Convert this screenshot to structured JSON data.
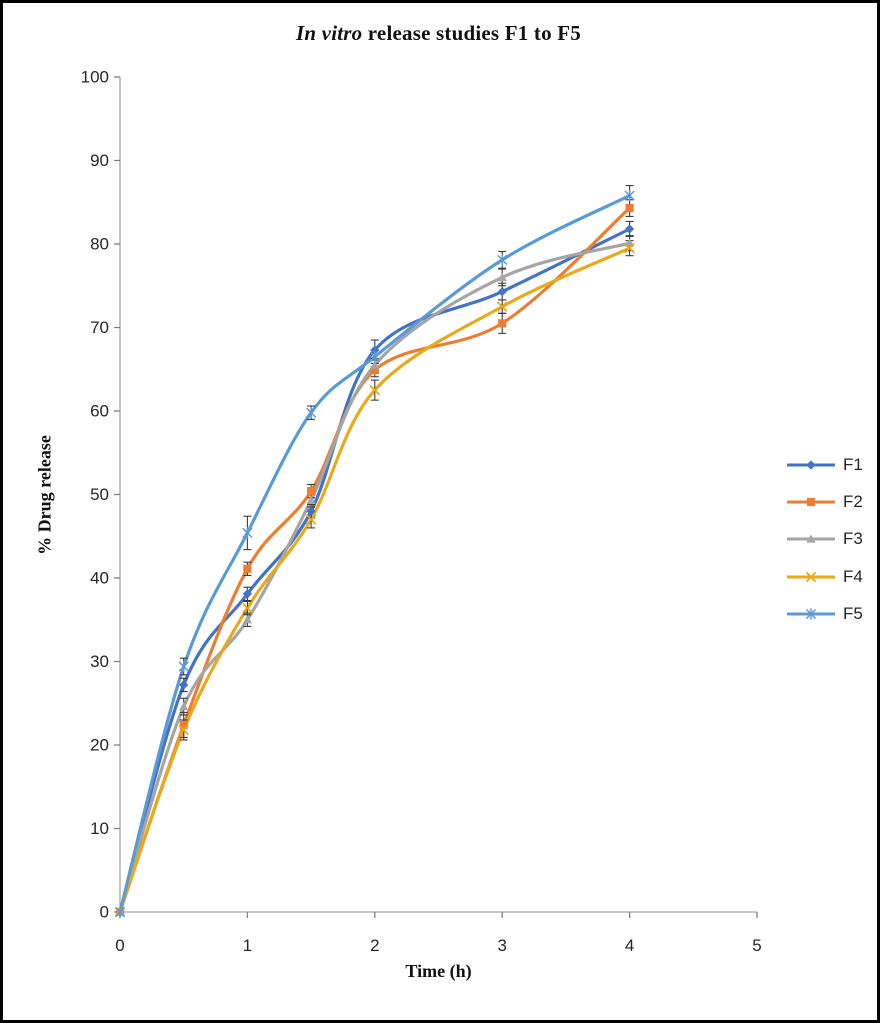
{
  "chart_data": {
    "type": "line",
    "title": "In vitro release studies F1 to F5",
    "title_italic_part": "In vitro",
    "title_rest_part": " release studies F1 to F5",
    "xlabel": "Time (h)",
    "ylabel": "% Drug release",
    "xlim": [
      0,
      5
    ],
    "ylim": [
      0,
      100
    ],
    "x_ticks": [
      0,
      1,
      2,
      3,
      4,
      5
    ],
    "y_ticks": [
      0,
      10,
      20,
      30,
      40,
      50,
      60,
      70,
      80,
      90,
      100
    ],
    "grid": false,
    "legend_position": "right",
    "smoothed_lines": true,
    "error_bars": true,
    "x": [
      0,
      0.5,
      1,
      1.5,
      2,
      3,
      4
    ],
    "series": [
      {
        "name": "F1",
        "color": "#4472C4",
        "marker": "diamond",
        "values": [
          0,
          27.2,
          38.1,
          48.0,
          67.3,
          74.3,
          81.8
        ],
        "errors": [
          0,
          0.8,
          0.8,
          0.8,
          1.2,
          1.0,
          0.9
        ]
      },
      {
        "name": "F2",
        "color": "#ED7D31",
        "marker": "square",
        "values": [
          0,
          22.4,
          41.1,
          50.4,
          64.9,
          70.5,
          84.3
        ],
        "errors": [
          0,
          1.5,
          0.8,
          0.8,
          0.8,
          1.2,
          1.0
        ]
      },
      {
        "name": "F3",
        "color": "#A5A5A5",
        "marker": "triangle",
        "values": [
          0,
          24.6,
          35.0,
          49.3,
          65.5,
          76.0,
          80.1
        ],
        "errors": [
          0,
          1.0,
          0.8,
          0.8,
          0.8,
          1.0,
          0.9
        ]
      },
      {
        "name": "F4",
        "color": "#E8A91D",
        "marker": "x",
        "values": [
          0,
          21.8,
          36.4,
          47.0,
          62.5,
          72.5,
          79.5
        ],
        "errors": [
          0,
          1.2,
          0.8,
          1.0,
          1.2,
          0.8,
          0.9
        ]
      },
      {
        "name": "F5",
        "color": "#5B9BD5",
        "marker": "asterisk",
        "values": [
          0,
          29.4,
          45.4,
          59.8,
          66.5,
          78.1,
          85.8
        ],
        "errors": [
          0,
          1.0,
          2.0,
          0.8,
          0.8,
          1.0,
          1.2
        ]
      }
    ]
  }
}
